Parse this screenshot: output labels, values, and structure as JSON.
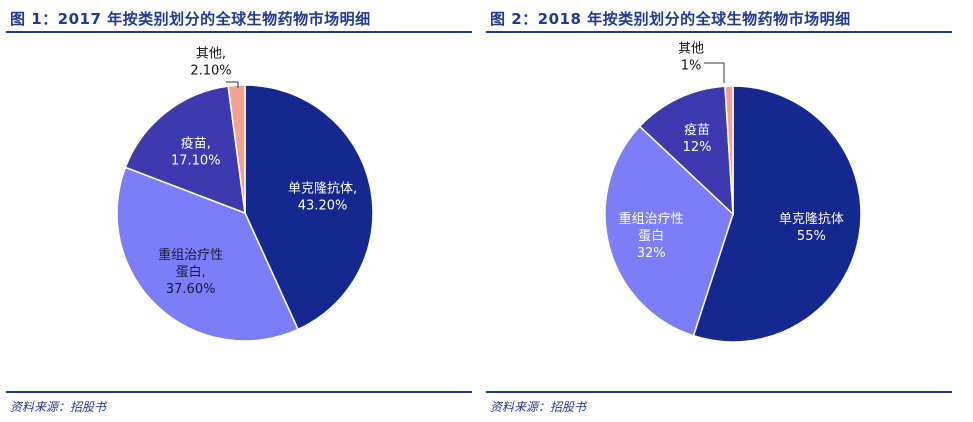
{
  "colors": {
    "accent": "#1f3a93",
    "mab": "#14288f",
    "recombinant": "#7b7ef7",
    "vaccine": "#3d3ab0",
    "other": "#f2a38e"
  },
  "panels": [
    {
      "title": "图 1：2017 年按类别划分的全球生物药物市场明细",
      "source": "资料来源：招股书"
    },
    {
      "title": "图 2：2018 年按类别划分的全球生物药物市场明细",
      "source": "资料来源：招股书"
    }
  ],
  "chart_data": [
    {
      "type": "pie",
      "title": "图 1：2017 年按类别划分的全球生物药物市场明细",
      "slices": [
        {
          "label": "单克隆抗体,",
          "value": 43.2,
          "display": "43.20%",
          "color_key": "mab",
          "text_color": "#ffffff"
        },
        {
          "label": "重组治疗性 蛋白,",
          "value": 37.6,
          "display": "37.60%",
          "color_key": "recombinant",
          "text_color": "#1a1a3a"
        },
        {
          "label": "疫苗,",
          "value": 17.1,
          "display": "17.10%",
          "color_key": "vaccine",
          "text_color": "#ffffff"
        },
        {
          "label": "其他,",
          "value": 2.1,
          "display": "2.10%",
          "color_key": "other",
          "text_color": "#111111"
        }
      ]
    },
    {
      "type": "pie",
      "title": "图 2：2018 年按类别划分的全球生物药物市场明细",
      "slices": [
        {
          "label": "单克隆抗体",
          "value": 55,
          "display": "55%",
          "color_key": "mab",
          "text_color": "#ffffff"
        },
        {
          "label": "重组治疗性 蛋白",
          "value": 32,
          "display": "32%",
          "color_key": "recombinant",
          "text_color": "#ffffff"
        },
        {
          "label": "疫苗",
          "value": 12,
          "display": "12%",
          "color_key": "vaccine",
          "text_color": "#ffffff"
        },
        {
          "label": "其他",
          "value": 1,
          "display": "1%",
          "color_key": "other",
          "text_color": "#111111"
        }
      ]
    }
  ]
}
